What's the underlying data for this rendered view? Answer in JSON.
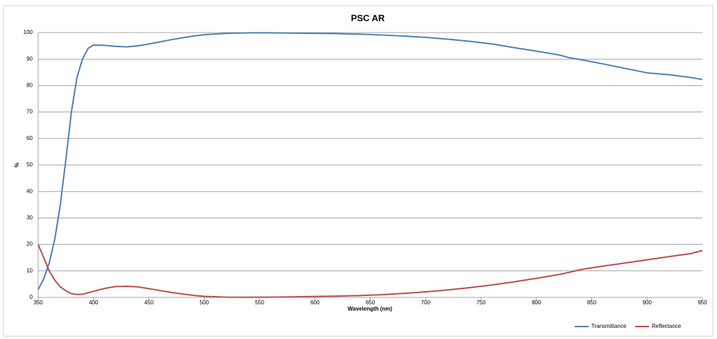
{
  "chart_data": {
    "type": "line",
    "title": "PSC AR",
    "x_label": "Wavelength (nm)",
    "y_label": "%",
    "x": [
      350,
      355,
      360,
      365,
      370,
      375,
      380,
      385,
      390,
      395,
      400,
      410,
      420,
      430,
      440,
      450,
      460,
      470,
      480,
      490,
      500,
      520,
      540,
      560,
      580,
      600,
      620,
      640,
      660,
      680,
      700,
      720,
      740,
      760,
      780,
      800,
      820,
      830,
      840,
      860,
      880,
      900,
      920,
      940,
      950
    ],
    "series": [
      {
        "name": "Transmittance",
        "color": "#4a7ebb",
        "values": [
          3,
          7,
          13,
          22,
          35,
          52,
          70,
          83,
          90,
          94,
          95.3,
          95.2,
          94.8,
          94.6,
          95,
          95.7,
          96.5,
          97.3,
          98,
          98.7,
          99.2,
          99.7,
          99.9,
          99.9,
          99.8,
          99.7,
          99.6,
          99.4,
          99.1,
          98.7,
          98.2,
          97.5,
          96.7,
          95.7,
          94.3,
          93,
          91.6,
          90.5,
          89.8,
          88.2,
          86.5,
          84.8,
          84.1,
          83,
          82.3
        ]
      },
      {
        "name": "Reflectance",
        "color": "#be4b48",
        "values": [
          20,
          15,
          10,
          6.5,
          4,
          2.5,
          1.4,
          1.1,
          1.2,
          1.7,
          2.3,
          3.4,
          4.1,
          4.2,
          4,
          3.3,
          2.6,
          1.9,
          1.3,
          0.8,
          0.4,
          0.1,
          0.05,
          0.1,
          0.2,
          0.35,
          0.5,
          0.7,
          1,
          1.5,
          2.1,
          2.8,
          3.7,
          4.7,
          5.9,
          7.2,
          8.6,
          9.5,
          10.5,
          11.8,
          13,
          14.2,
          15.4,
          16.6,
          17.7
        ]
      }
    ],
    "xlim": [
      350,
      950
    ],
    "xticks": [
      350,
      400,
      450,
      500,
      550,
      600,
      650,
      700,
      750,
      800,
      850,
      900,
      950
    ],
    "ylim": [
      0,
      100
    ],
    "yticks": [
      0,
      10,
      20,
      30,
      40,
      50,
      60,
      70,
      80,
      90,
      100
    ],
    "grid": true,
    "legend": "bottom-right"
  }
}
